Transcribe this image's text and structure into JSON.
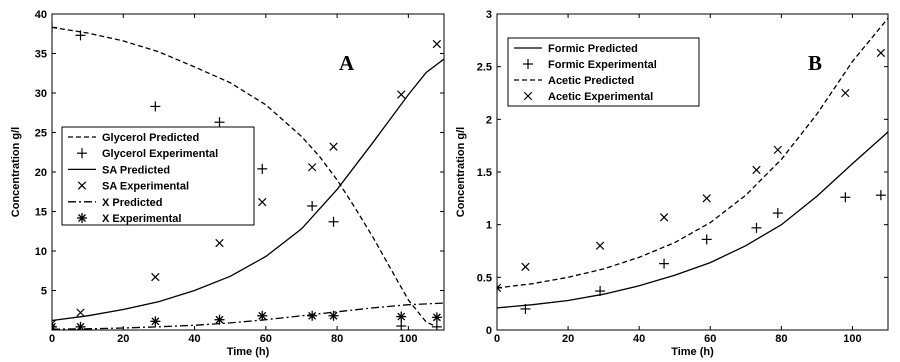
{
  "chart_data": [
    {
      "type": "line",
      "panel_label": "A",
      "xlabel": "Time (h)",
      "ylabel": "Concentration g/l",
      "xlim": [
        0,
        110
      ],
      "ylim": [
        0,
        40
      ],
      "xticks": [
        0,
        20,
        40,
        60,
        80,
        100
      ],
      "yticks": [
        5,
        10,
        15,
        20,
        25,
        30,
        35,
        40
      ],
      "legend_position": "center-left",
      "series": [
        {
          "name": "Glycerol Predicted",
          "kind": "line",
          "style": "dashed",
          "x": [
            0,
            10,
            20,
            30,
            40,
            50,
            60,
            70,
            75,
            80,
            85,
            90,
            95,
            100,
            105,
            108
          ],
          "y": [
            38.3,
            37.6,
            36.6,
            35.2,
            33.3,
            31.3,
            28.5,
            24.5,
            22.0,
            19.0,
            15.5,
            11.8,
            7.8,
            3.8,
            1.0,
            0.4
          ]
        },
        {
          "name": "Glycerol Experimental",
          "kind": "marker",
          "marker": "plus",
          "x": [
            0,
            8,
            29,
            47,
            59,
            73,
            79,
            98,
            108
          ],
          "y": [
            38.3,
            37.3,
            28.3,
            26.3,
            20.4,
            15.7,
            13.7,
            0.5,
            0.4
          ]
        },
        {
          "name": "SA Predicted",
          "kind": "line",
          "style": "solid",
          "x": [
            0,
            10,
            20,
            30,
            40,
            50,
            60,
            70,
            80,
            90,
            100,
            105,
            110
          ],
          "y": [
            1.2,
            1.8,
            2.6,
            3.6,
            5.0,
            6.8,
            9.3,
            12.8,
            17.8,
            23.7,
            29.8,
            32.6,
            34.3
          ]
        },
        {
          "name": "SA Experimental",
          "kind": "marker",
          "marker": "x",
          "x": [
            0,
            8,
            29,
            47,
            59,
            73,
            79,
            98,
            108
          ],
          "y": [
            0.8,
            2.2,
            6.7,
            11.0,
            16.2,
            20.6,
            23.2,
            29.8,
            36.2
          ]
        },
        {
          "name": "X Predicted",
          "kind": "line",
          "style": "dashdot",
          "x": [
            0,
            10,
            20,
            30,
            40,
            50,
            60,
            70,
            80,
            90,
            100,
            110
          ],
          "y": [
            0.1,
            0.15,
            0.25,
            0.4,
            0.6,
            0.9,
            1.3,
            1.8,
            2.3,
            2.8,
            3.2,
            3.4
          ]
        },
        {
          "name": "X Experimental",
          "kind": "marker",
          "marker": "star",
          "x": [
            0,
            8,
            29,
            47,
            59,
            73,
            79,
            98,
            108
          ],
          "y": [
            0.4,
            0.4,
            1.1,
            1.3,
            1.8,
            1.8,
            1.8,
            1.7,
            1.6
          ]
        }
      ]
    },
    {
      "type": "line",
      "panel_label": "B",
      "xlabel": "Time (h)",
      "ylabel": "Concentration g/l",
      "xlim": [
        0,
        110
      ],
      "ylim": [
        0,
        3
      ],
      "xticks": [
        0,
        20,
        40,
        60,
        80,
        100
      ],
      "yticks": [
        0,
        0.5,
        1,
        1.5,
        2,
        2.5,
        3
      ],
      "legend_position": "top-left",
      "series": [
        {
          "name": "Formic Predicted",
          "kind": "line",
          "style": "solid",
          "x": [
            0,
            10,
            20,
            30,
            40,
            50,
            60,
            70,
            80,
            90,
            100,
            110
          ],
          "y": [
            0.21,
            0.24,
            0.28,
            0.34,
            0.42,
            0.52,
            0.64,
            0.8,
            1.0,
            1.27,
            1.58,
            1.88
          ]
        },
        {
          "name": "Formic Experimental",
          "kind": "marker",
          "marker": "plus",
          "x": [
            0,
            8,
            29,
            47,
            59,
            73,
            79,
            98,
            108
          ],
          "y": [
            0.4,
            0.2,
            0.37,
            0.63,
            0.86,
            0.97,
            1.11,
            1.26,
            1.28
          ]
        },
        {
          "name": "Acetic Predicted",
          "kind": "line",
          "style": "dashed",
          "x": [
            0,
            10,
            20,
            30,
            40,
            50,
            60,
            70,
            80,
            90,
            100,
            110
          ],
          "y": [
            0.4,
            0.44,
            0.5,
            0.58,
            0.69,
            0.83,
            1.02,
            1.28,
            1.62,
            2.05,
            2.55,
            2.96
          ]
        },
        {
          "name": "Acetic Experimental",
          "kind": "marker",
          "marker": "x",
          "x": [
            0,
            8,
            29,
            47,
            59,
            73,
            79,
            98,
            108
          ],
          "y": [
            0.4,
            0.6,
            0.8,
            1.07,
            1.25,
            1.52,
            1.71,
            2.25,
            2.63
          ]
        }
      ]
    }
  ]
}
